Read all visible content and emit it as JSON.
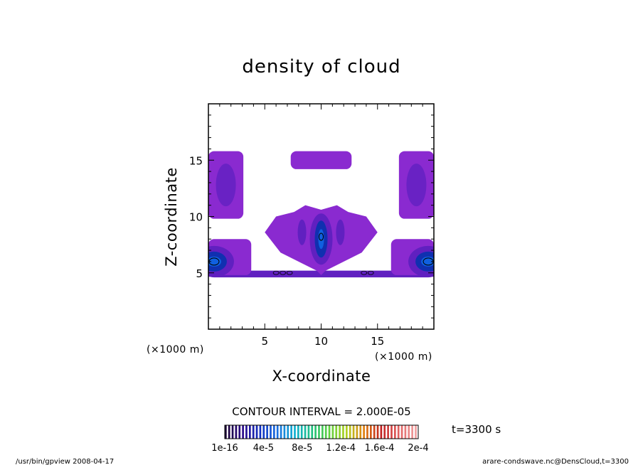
{
  "chart_data": {
    "type": "heatmap",
    "title": "density of cloud",
    "xlabel": "X-coordinate",
    "ylabel": "Z-coordinate",
    "x_unit": "(×1000 m)",
    "y_unit": "(×1000 m)",
    "xlim": [
      0,
      20
    ],
    "ylim": [
      0,
      20
    ],
    "x_ticks": [
      "5",
      "10",
      "15"
    ],
    "y_ticks": [
      "5",
      "10",
      "15"
    ],
    "x_tick_values": [
      5,
      10,
      15
    ],
    "y_tick_values": [
      5,
      10,
      15
    ],
    "contour_interval_label": "CONTOUR INTERVAL = 2.000E-05",
    "time_label": "t=3300 s",
    "colorbar": {
      "labels": [
        "1e-16",
        "4e-5",
        "8e-5",
        "1.2e-4",
        "1.6e-4",
        "2e-4"
      ],
      "min": 1e-16,
      "max": 0.0002,
      "colors": [
        "#1a0033",
        "#2a0a8a",
        "#1030c0",
        "#1a70e0",
        "#10b0d0",
        "#20c080",
        "#60d040",
        "#b0d020",
        "#e08010",
        "#c02020",
        "#e06060",
        "#f0a0a0"
      ]
    },
    "cloud_regions": [
      {
        "name": "top cap",
        "x": [
          7.3,
          12.7
        ],
        "z": [
          14.2,
          15.8
        ],
        "level": "low"
      },
      {
        "name": "central plume",
        "x": [
          4.8,
          15.2
        ],
        "z": [
          4.8,
          11.0
        ],
        "level": "low-high",
        "core_x": 10,
        "core_z": 8
      },
      {
        "name": "left edge upper",
        "x": [
          0,
          3.1
        ],
        "z": [
          9.8,
          15.8
        ],
        "level": "low"
      },
      {
        "name": "right edge upper",
        "x": [
          16.9,
          20
        ],
        "z": [
          9.8,
          15.8
        ],
        "level": "low"
      },
      {
        "name": "left edge lower",
        "x": [
          0,
          3.8
        ],
        "z": [
          4.8,
          8.0
        ],
        "level": "high",
        "core_x": 0.5,
        "core_z": 6
      },
      {
        "name": "right edge lower",
        "x": [
          16.2,
          20
        ],
        "z": [
          4.8,
          8.0
        ],
        "level": "high",
        "core_x": 19.5,
        "core_z": 6
      },
      {
        "name": "base strip",
        "x": [
          0,
          20
        ],
        "z": [
          4.6,
          5.2
        ],
        "level": "low"
      }
    ]
  },
  "footer": {
    "left": "/usr/bin/gpview  2008-04-17",
    "right": "arare-condswave.nc@DensCloud,t=3300"
  },
  "colors": {
    "cloud_low": "#8a2ad0",
    "cloud_mid": "#6020c0",
    "cloud_high": "#1030b0",
    "cloud_core": "#1060e0",
    "background": "#ffffff"
  }
}
